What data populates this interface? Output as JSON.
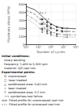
{
  "chart_data": {
    "type": "line",
    "xlabel": "Number of cycles",
    "ylabel": "Maximum stress (MPa)",
    "log": "x",
    "grid": true,
    "xlim": [
      10000,
      100000000
    ],
    "xticks": [
      {
        "value": 10000,
        "label": "10⁴"
      },
      {
        "value": 100000,
        "label": "10⁵"
      },
      {
        "value": 1000000,
        "label": "10⁶"
      },
      {
        "value": 10000000,
        "label": "10⁷"
      },
      {
        "value": 100000000,
        "label": "10⁸"
      }
    ],
    "ylim": [
      0,
      500
    ],
    "yticks": [
      0,
      100,
      200,
      300,
      400,
      500
    ],
    "series": [
      {
        "type": "line",
        "x": [
          10000,
          50000,
          100000,
          300000,
          1000000,
          3000000,
          10000000,
          50000000,
          100000000
        ],
        "values": [
          470,
          430,
          390,
          320,
          255,
          215,
          200,
          195,
          193
        ],
        "color": "#222222",
        "line_style": "solid"
      },
      {
        "type": "line",
        "x": [
          10000,
          50000,
          100000,
          300000,
          1000000,
          3000000,
          10000000,
          50000000,
          100000000
        ],
        "values": [
          420,
          375,
          330,
          265,
          210,
          175,
          162,
          158,
          156
        ],
        "color": "#444444",
        "line_style": "dashed"
      },
      {
        "type": "line",
        "x": [
          10000,
          50000,
          100000,
          300000,
          1000000,
          3000000,
          10000000,
          50000000,
          100000000
        ],
        "values": [
          370,
          310,
          265,
          205,
          160,
          130,
          120,
          117,
          115
        ],
        "color": "#666666",
        "line_style": "dashdot"
      },
      {
        "type": "line",
        "x": [
          10000,
          50000,
          100000,
          300000,
          1000000,
          3000000,
          10000000,
          50000000,
          100000000
        ],
        "values": [
          320,
          255,
          210,
          158,
          122,
          100,
          92,
          89,
          88
        ],
        "color": "#888888",
        "line_style": "dotted"
      },
      {
        "type": "scatter",
        "x": [
          200000,
          500000,
          1000000,
          3000000,
          8000000
        ],
        "values": [
          310,
          275,
          245,
          215,
          200
        ],
        "color": "#111111",
        "marker": "circle"
      },
      {
        "type": "scatter",
        "x": [
          200000,
          500000,
          1000000,
          3000000,
          8000000
        ],
        "values": [
          255,
          225,
          200,
          172,
          160
        ],
        "color": "#333333",
        "marker": "square"
      },
      {
        "type": "scatter",
        "x": [
          200000,
          500000,
          1000000,
          3000000
        ],
        "values": [
          200,
          175,
          155,
          132
        ],
        "color": "#222222",
        "marker": "triangle-up"
      },
      {
        "type": "scatter",
        "x": [
          200000,
          500000,
          1000000,
          3000000
        ],
        "values": [
          150,
          132,
          118,
          100
        ],
        "color": "#555555",
        "marker": "diamond"
      },
      {
        "type": "scatter",
        "x": [
          200000,
          500000,
          1000000,
          3000000
        ],
        "values": [
          170,
          150,
          135,
          115
        ],
        "color": "#444444",
        "marker": "triangle-down"
      }
    ],
    "arrows": [
      {
        "x": [
          10000000,
          25000000
        ],
        "y": [
          200,
          200
        ],
        "color": "#444444"
      },
      {
        "x": [
          10000000,
          25000000
        ],
        "y": [
          162,
          162
        ],
        "color": "#444444"
      },
      {
        "x": [
          10000000,
          25000000
        ],
        "y": [
          120,
          120
        ],
        "color": "#444444"
      },
      {
        "x": [
          10000000,
          25000000
        ],
        "y": [
          92,
          92
        ],
        "color": "#444444"
      }
    ],
    "annotations": [
      {
        "x": 120000,
        "y": 395,
        "text": "R=-1"
      },
      {
        "x": 120000,
        "y": 315,
        "text": "R=-0.5"
      },
      {
        "x": 120000,
        "y": 250,
        "text": "R=0.1"
      },
      {
        "x": 120000,
        "y": 190,
        "text": "R=0.3"
      }
    ],
    "notes": [
      {
        "text": "Initial conditions:"
      },
      {
        "text": "rotary bending"
      },
      {
        "text": "frequency: 1,400 to 5,000 rpm"
      },
      {
        "text": "material: GJS cast iron"
      },
      {
        "text": "Experimental points:"
      },
      {
        "text": "O  unprocessed"
      },
      {
        "text": "□  laser treated"
      },
      {
        "text": "△  sandblasted area: 0.43 mm"
      },
      {
        "text": "◇  laser treated"
      },
      {
        "text": "▽  sandblasted area: 0.2 mm"
      },
      {
        "text": "→→  symbolises test failure"
      },
      {
        "text": "Fitted profile for unprocessed cast iron",
        "color": "#222222",
        "line_style": "solid"
      },
      {
        "text": "Fitted profile for processed cast iron",
        "color": "#666666",
        "line_style": "dashed"
      }
    ]
  }
}
